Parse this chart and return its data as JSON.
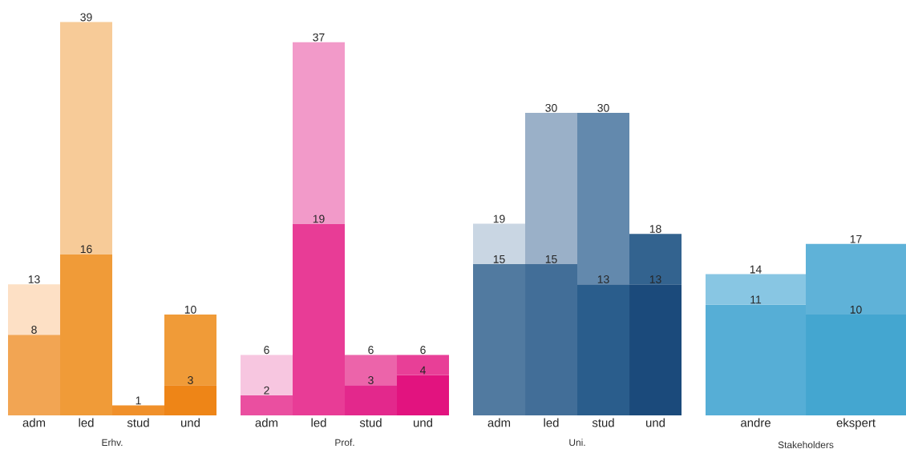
{
  "chart_data": [
    {
      "type": "bar",
      "stacked": true,
      "xlabel": "Erhv.",
      "categories": [
        "adm",
        "led",
        "stud",
        "und"
      ],
      "tick_labels": "x",
      "totals": [
        "13",
        "39",
        "1",
        "10"
      ],
      "series": [
        {
          "values": [
            8,
            16,
            null,
            3
          ],
          "colors": [
            "#f2a553",
            "#f09b38",
            "#f0902a",
            "#ee8517"
          ],
          "value_labels": [
            "8",
            "16",
            null,
            "3"
          ]
        },
        {
          "values": [
            5,
            23,
            1,
            7
          ],
          "colors": [
            "#fde0c5",
            "#f7cb98",
            "#f0902a",
            "#f09b38"
          ]
        }
      ]
    },
    {
      "type": "bar",
      "stacked": true,
      "xlabel": "Prof.",
      "categories": [
        "adm",
        "led",
        "stud",
        "und"
      ],
      "tick_labels": "x",
      "totals": [
        "6",
        "37",
        "6",
        "6"
      ],
      "series": [
        {
          "values": [
            2,
            19,
            3,
            4
          ],
          "colors": [
            "#ea4fa0",
            "#e83c96",
            "#e3288c",
            "#e2137f"
          ],
          "value_labels": [
            "2",
            "19",
            "3",
            "4"
          ]
        },
        {
          "values": [
            4,
            18,
            3,
            2
          ],
          "colors": [
            "#f7c6e0",
            "#f29ac9",
            "#ec64aa",
            "#e83f97"
          ]
        }
      ]
    },
    {
      "type": "bar",
      "stacked": true,
      "xlabel": "Uni.",
      "categories": [
        "adm",
        "led",
        "stud",
        "und"
      ],
      "tick_labels": "x",
      "totals": [
        "19",
        "30",
        "30",
        "18"
      ],
      "series": [
        {
          "values": [
            15,
            15,
            13,
            13
          ],
          "colors": [
            "#517aa0",
            "#426e98",
            "#2a5d8c",
            "#1b4a7b"
          ],
          "value_labels": [
            "15",
            "15",
            "13",
            "13"
          ]
        },
        {
          "values": [
            4,
            15,
            17,
            5
          ],
          "colors": [
            "#c9d6e3",
            "#9ab0c8",
            "#6389ad",
            "#33638f"
          ]
        }
      ]
    },
    {
      "type": "bar",
      "stacked": true,
      "xlabel": "Stakeholders",
      "categories": [
        "andre",
        "ekspert"
      ],
      "tick_labels": "x",
      "totals": [
        "14",
        "17"
      ],
      "series": [
        {
          "values": [
            11,
            10
          ],
          "colors": [
            "#56aed6",
            "#44a6d0"
          ],
          "value_labels": [
            "11",
            "10"
          ]
        },
        {
          "values": [
            3,
            7
          ],
          "colors": [
            "#88c6e3",
            "#5fb2d8"
          ]
        }
      ]
    }
  ]
}
